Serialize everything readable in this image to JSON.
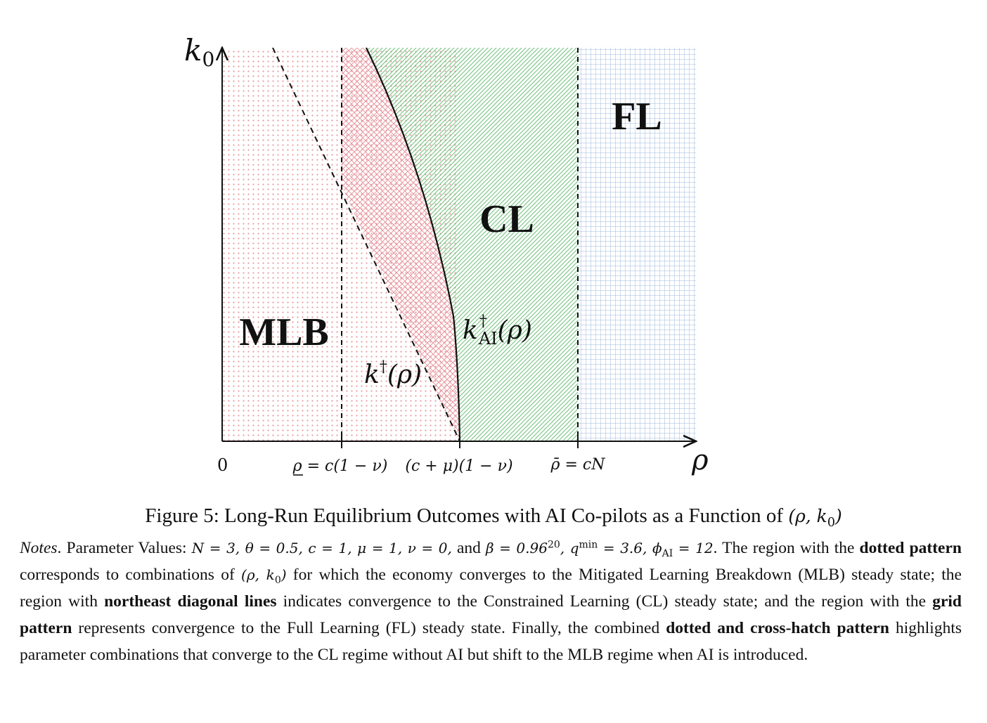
{
  "figure": {
    "axis_labels": {
      "y": "k",
      "y_sub": "0",
      "x": "ρ"
    },
    "ticks": {
      "origin": "0",
      "rho_low": "ρ = c(1 − ν)",
      "rho_mid": "(c + μ)(1 − ν)",
      "rho_high": "ρ̄ = cN"
    },
    "regions": {
      "mlb": "MLB",
      "cl": "CL",
      "fl": "FL"
    },
    "curves": {
      "k_dagger": "k",
      "k_dagger_sup": "†",
      "k_dagger_arg": "(ρ)",
      "k_ai": "k",
      "k_ai_sup": "†",
      "k_ai_sub": "AI",
      "k_ai_arg": "(ρ)"
    },
    "colors": {
      "dotted": "#e89aa0",
      "crosshatch": "#e48d96",
      "diagonal": "#6fbf7a",
      "grid": "#9db8dd"
    }
  },
  "caption": {
    "prefix": "Figure 5: Long-Run Equilibrium Outcomes with AI Co-pilots as a Function of ",
    "math": "(ρ, k",
    "math_sub": "0",
    "math_end": ")"
  },
  "notes": {
    "label": "Notes",
    "p1": ". Parameter Values: ",
    "params": "N = 3, θ = 0.5, c = 1, μ = 1, ν = 0,",
    "and": " and ",
    "beta": "β = 0.96",
    "beta_exp": "20",
    "q": ", q",
    "q_sup": "min",
    "q_val": " = 3.6, ϕ",
    "phi_sub": "AI",
    "phi_val": " = 12",
    "p2": ". The region with the ",
    "b1": "dotted pattern",
    "p3": " corresponds to combinations of ",
    "rk": "(ρ, k",
    "rk_sub": "0",
    "rk_end": ")",
    "p4": " for which the economy converges to the Mitigated Learning Breakdown (MLB) steady state; the region with ",
    "b2": "northeast diagonal lines",
    "p5": " indicates convergence to the Constrained Learning (CL) steady state; and the region with the ",
    "b3": "grid pattern",
    "p6": " represents convergence to the Full Learning (FL) steady state. Finally, the combined ",
    "b4": "dotted and cross-hatch pattern",
    "p7": " highlights parameter combinations that converge to the CL regime without AI but shift to the MLB regime when AI is introduced."
  }
}
